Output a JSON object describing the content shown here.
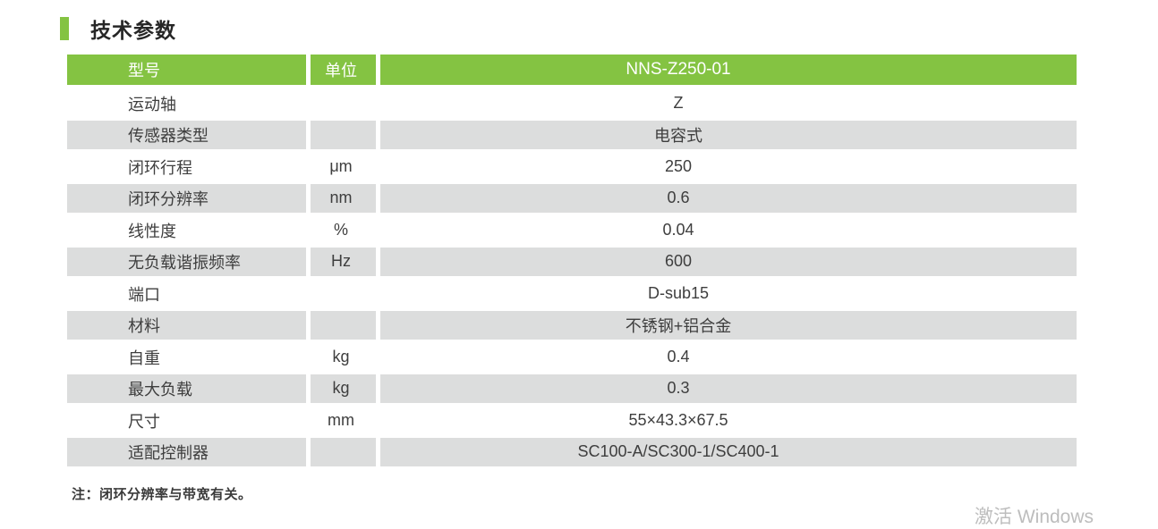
{
  "title": {
    "text": "技术参数"
  },
  "table": {
    "header": {
      "model": "型号",
      "unit": "单位",
      "value": "NNS-Z250-01"
    },
    "rows": [
      {
        "label": "运动轴",
        "unit": "",
        "value": "Z",
        "shade": false
      },
      {
        "label": "传感器类型",
        "unit": "",
        "value": "电容式",
        "shade": true
      },
      {
        "label": "闭环行程",
        "unit": "μm",
        "value": "250",
        "shade": false
      },
      {
        "label": "闭环分辨率",
        "unit": "nm",
        "value": "0.6",
        "shade": true
      },
      {
        "label": "线性度",
        "unit": "%",
        "value": "0.04",
        "shade": false
      },
      {
        "label": "无负载谐振频率",
        "unit": "Hz",
        "value": "600",
        "shade": true
      },
      {
        "label": "端口",
        "unit": "",
        "value": "D-sub15",
        "shade": false
      },
      {
        "label": "材料",
        "unit": "",
        "value": "不锈钢+铝合金",
        "shade": true
      },
      {
        "label": "自重",
        "unit": "kg",
        "value": "0.4",
        "shade": false
      },
      {
        "label": "最大负载",
        "unit": "kg",
        "value": "0.3",
        "shade": true
      },
      {
        "label": "尺寸",
        "unit": "mm",
        "value": "55×43.3×67.5",
        "shade": false
      },
      {
        "label": "适配控制器",
        "unit": "",
        "value": "SC100-A/SC300-1/SC400-1",
        "shade": true
      }
    ]
  },
  "note": {
    "text": "注：闭环分辨率与带宽有关。"
  },
  "watermark": {
    "text": "激活 Windows"
  },
  "colors": {
    "accent_green": "#84C342",
    "row_gray": "#DCDDDD",
    "header_text": "#FFFFFF",
    "body_text": "#3E3E3E",
    "note_text": "#3A3A3A",
    "watermark_gray": "#BDBDBD"
  }
}
